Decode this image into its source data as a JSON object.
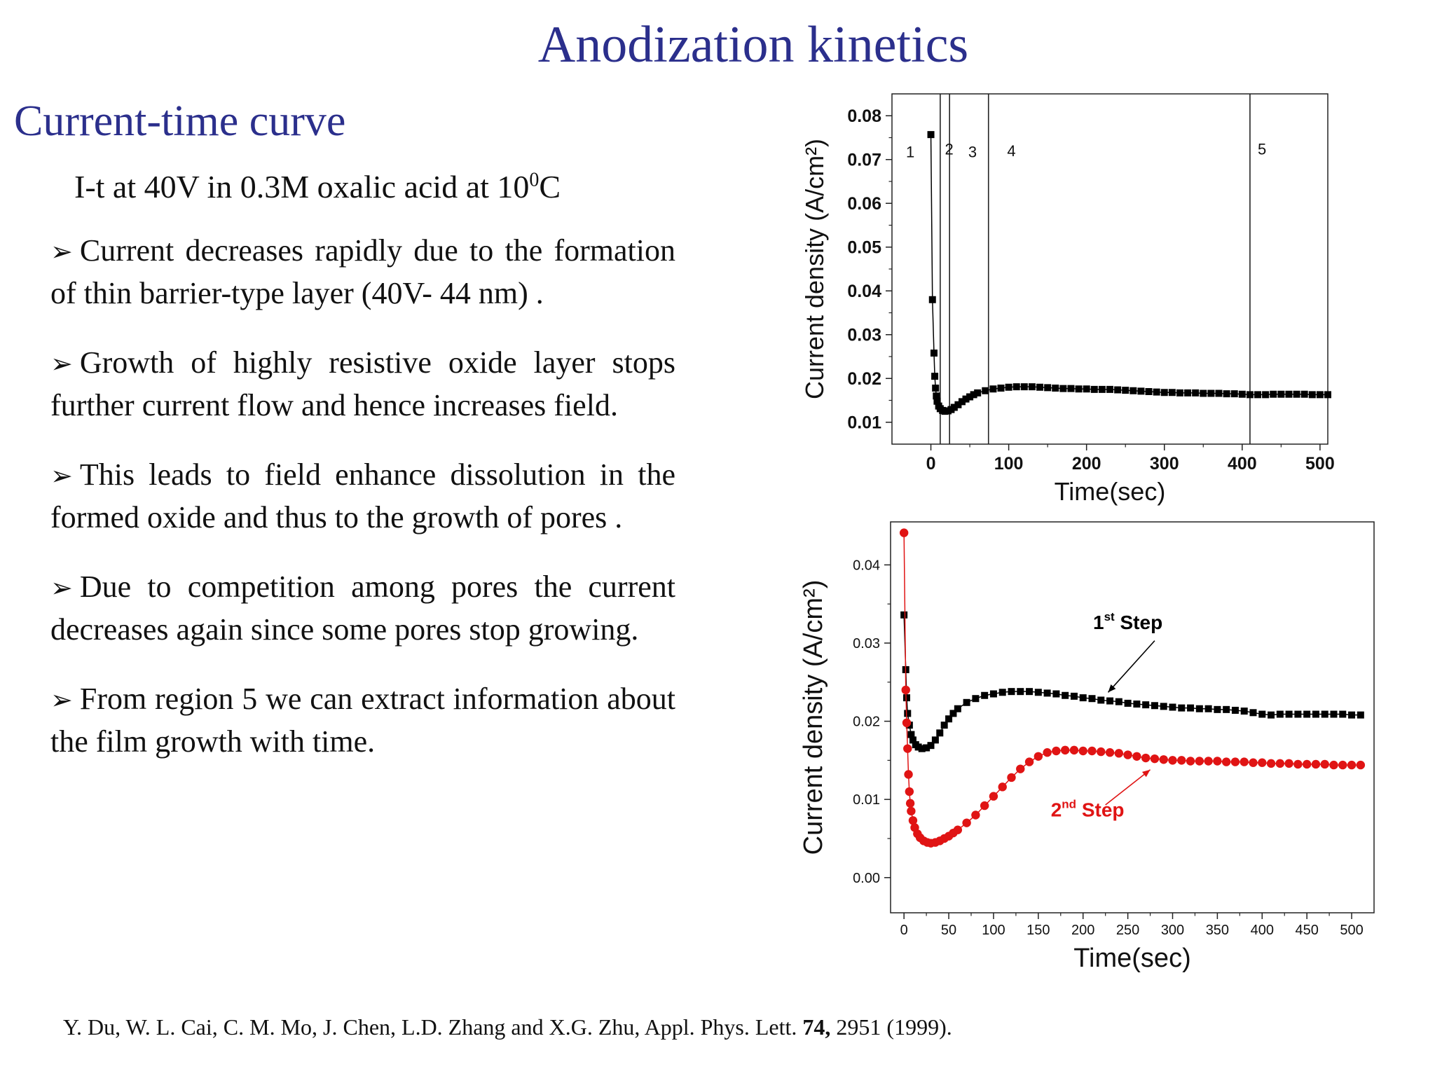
{
  "slide": {
    "title": "Anodization  kinetics",
    "section_title": "Current-time curve",
    "condition_text": "I-t at 40V  in 0.3M oxalic acid at 10",
    "condition_sup": "0",
    "condition_unit": "C"
  },
  "bullets": [
    "Current decreases rapidly due to the formation of thin barrier-type layer (40V- 44 nm) .",
    "Growth of highly resistive oxide layer stops further current flow and hence increases field.",
    "This leads to field enhance dissolution in the formed oxide and thus to the growth of pores .",
    "Due to competition among pores the current decreases again since some pores stop growing.",
    "From region 5 we can extract information about the film growth with time."
  ],
  "reference": {
    "authors": "Y. Du, W. L. Cai, C. M. Mo, J. Chen, L.D. Zhang and X.G. Zhu, Appl. Phys. Lett. ",
    "volume": "74,",
    "rest": " 2951 (1999)."
  },
  "chart_data": [
    {
      "type": "scatter",
      "xlabel": "Time(sec)",
      "ylabel": "Current density (A/cm²)",
      "xlim": [
        -50,
        510
      ],
      "ylim": [
        0.005,
        0.085
      ],
      "xticks": [
        0,
        100,
        200,
        300,
        400,
        500
      ],
      "yticks": [
        0.01,
        0.02,
        0.03,
        0.04,
        0.05,
        0.06,
        0.07,
        0.08
      ],
      "ytick_labels": [
        "0.01",
        "0.02",
        "0.03",
        "0.04",
        "0.05",
        "0.06",
        "0.07",
        "0.08"
      ],
      "bold_ticks": true,
      "grid": false,
      "region_lines": [
        12,
        24,
        74,
        410
      ],
      "region_labels": [
        {
          "label": "1",
          "x": -32,
          "y": 0.0705
        },
        {
          "label": "2",
          "x": 18,
          "y": 0.0712
        },
        {
          "label": "3",
          "x": 48,
          "y": 0.0705
        },
        {
          "label": "4",
          "x": 98,
          "y": 0.0708
        },
        {
          "label": "5",
          "x": 420,
          "y": 0.0712
        }
      ],
      "series": [
        {
          "color": "#000000",
          "marker": "square",
          "x": [
            0,
            2,
            4,
            5,
            6,
            7,
            8,
            10,
            12,
            15,
            18,
            22,
            26,
            30,
            35,
            40,
            45,
            50,
            55,
            60,
            70,
            80,
            90,
            100,
            110,
            120,
            130,
            140,
            150,
            160,
            170,
            180,
            190,
            200,
            210,
            220,
            230,
            240,
            250,
            260,
            270,
            280,
            290,
            300,
            310,
            320,
            330,
            340,
            350,
            360,
            370,
            380,
            390,
            400,
            410,
            420,
            430,
            440,
            450,
            460,
            470,
            480,
            490,
            500,
            510
          ],
          "y": [
            0.0757,
            0.038,
            0.0258,
            0.0205,
            0.0178,
            0.016,
            0.0148,
            0.0137,
            0.0131,
            0.0127,
            0.0125,
            0.0126,
            0.0129,
            0.0134,
            0.014,
            0.0147,
            0.0153,
            0.0158,
            0.0163,
            0.0167,
            0.0172,
            0.0176,
            0.0178,
            0.018,
            0.0181,
            0.0181,
            0.0181,
            0.018,
            0.0179,
            0.0178,
            0.0177,
            0.0177,
            0.0176,
            0.0176,
            0.0175,
            0.0175,
            0.0175,
            0.0174,
            0.0173,
            0.0172,
            0.0171,
            0.017,
            0.0169,
            0.0168,
            0.0168,
            0.0167,
            0.0167,
            0.0167,
            0.0166,
            0.0166,
            0.0166,
            0.0165,
            0.0165,
            0.0164,
            0.0163,
            0.0163,
            0.0163,
            0.0164,
            0.0164,
            0.0164,
            0.0164,
            0.0164,
            0.0163,
            0.0163,
            0.0163
          ]
        }
      ]
    },
    {
      "type": "scatter",
      "xlabel": "Time(sec)",
      "ylabel": "Current density (A/cm²)",
      "xlim": [
        -15,
        525
      ],
      "ylim": [
        -0.0045,
        0.0455
      ],
      "xticks": [
        0,
        50,
        100,
        150,
        200,
        250,
        300,
        350,
        400,
        450,
        500
      ],
      "yticks": [
        0.0,
        0.01,
        0.02,
        0.03,
        0.04
      ],
      "ytick_labels": [
        "0.00",
        "0.01",
        "0.02",
        "0.03",
        "0.04"
      ],
      "bold_ticks": false,
      "grid": false,
      "annotations": [
        {
          "text": "1",
          "sup": "st",
          "tail": " Step",
          "x": 250,
          "y": 0.0318,
          "color": "#000000",
          "arrow_from": [
            280,
            0.0303
          ],
          "arrow_to": [
            228,
            0.0237
          ]
        },
        {
          "text": "2",
          "sup": "nd",
          "tail": " Step",
          "x": 205,
          "y": 0.0078,
          "color": "#e01414",
          "arrow_from": [
            225,
            0.0093
          ],
          "arrow_to": [
            275,
            0.0138
          ]
        }
      ],
      "series": [
        {
          "name": "1st Step",
          "color": "#000000",
          "marker": "square",
          "x": [
            0,
            2,
            3,
            4,
            6,
            8,
            10,
            13,
            16,
            20,
            25,
            30,
            35,
            40,
            45,
            50,
            55,
            60,
            70,
            80,
            90,
            100,
            110,
            120,
            130,
            140,
            150,
            160,
            170,
            180,
            190,
            200,
            210,
            220,
            230,
            240,
            250,
            260,
            270,
            280,
            290,
            300,
            310,
            320,
            330,
            340,
            350,
            360,
            370,
            380,
            390,
            400,
            410,
            420,
            430,
            440,
            450,
            460,
            470,
            480,
            490,
            500,
            510
          ],
          "y": [
            0.0336,
            0.0266,
            0.023,
            0.021,
            0.0195,
            0.0183,
            0.0176,
            0.017,
            0.0167,
            0.0165,
            0.0166,
            0.0169,
            0.0176,
            0.0185,
            0.0195,
            0.0203,
            0.021,
            0.0216,
            0.0224,
            0.0229,
            0.0233,
            0.0235,
            0.0237,
            0.0238,
            0.0238,
            0.0238,
            0.0237,
            0.0236,
            0.0235,
            0.0233,
            0.0232,
            0.023,
            0.0229,
            0.0227,
            0.0226,
            0.0225,
            0.0223,
            0.0222,
            0.0221,
            0.022,
            0.0219,
            0.0218,
            0.0217,
            0.0217,
            0.0216,
            0.0216,
            0.0215,
            0.0215,
            0.0214,
            0.0213,
            0.0211,
            0.0209,
            0.0208,
            0.0209,
            0.0209,
            0.0209,
            0.0209,
            0.0209,
            0.0209,
            0.0209,
            0.0209,
            0.0208,
            0.0208
          ]
        },
        {
          "name": "2nd Step",
          "color": "#e01414",
          "marker": "circle",
          "x": [
            0,
            2,
            3,
            4,
            5,
            6,
            7,
            8,
            10,
            12,
            15,
            18,
            22,
            26,
            30,
            35,
            40,
            45,
            50,
            55,
            60,
            70,
            80,
            90,
            100,
            110,
            120,
            130,
            140,
            150,
            160,
            170,
            180,
            190,
            200,
            210,
            220,
            230,
            240,
            250,
            260,
            270,
            280,
            290,
            300,
            310,
            320,
            330,
            340,
            350,
            360,
            370,
            380,
            390,
            400,
            410,
            420,
            430,
            440,
            450,
            460,
            470,
            480,
            490,
            500,
            510
          ],
          "y": [
            0.0441,
            0.024,
            0.0198,
            0.0165,
            0.0132,
            0.011,
            0.0095,
            0.0085,
            0.0073,
            0.0064,
            0.0056,
            0.0051,
            0.0047,
            0.0045,
            0.0044,
            0.0045,
            0.0047,
            0.005,
            0.0053,
            0.0057,
            0.0061,
            0.007,
            0.008,
            0.0092,
            0.0104,
            0.0116,
            0.0128,
            0.0139,
            0.0148,
            0.0155,
            0.016,
            0.0162,
            0.0163,
            0.0163,
            0.0162,
            0.0162,
            0.0161,
            0.016,
            0.0159,
            0.0157,
            0.0155,
            0.0153,
            0.0152,
            0.0151,
            0.015,
            0.015,
            0.0149,
            0.0149,
            0.0149,
            0.0149,
            0.0148,
            0.0148,
            0.0148,
            0.0147,
            0.0147,
            0.0146,
            0.0146,
            0.0146,
            0.0145,
            0.0145,
            0.0145,
            0.0145,
            0.0144,
            0.0144,
            0.0144,
            0.0144
          ]
        }
      ]
    }
  ]
}
